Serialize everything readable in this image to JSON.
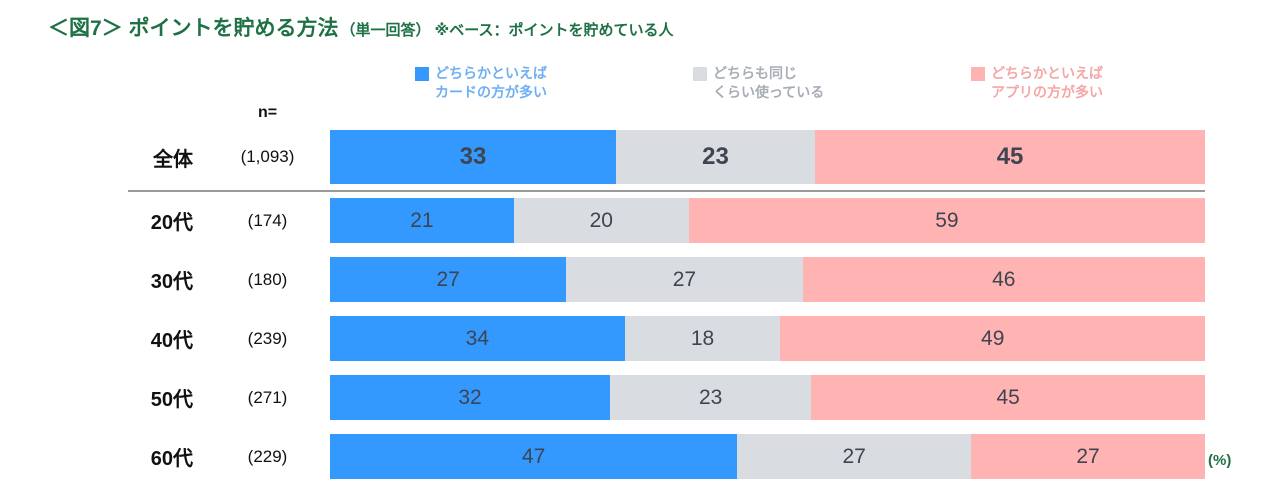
{
  "title": {
    "main": "＜図7＞ ポイントを貯める方法",
    "sub": "（単一回答） ※ベース：ポイントを貯めている人"
  },
  "n_label": "n=",
  "unit_label": "(%)",
  "colors": {
    "card_blue": "#3399FF",
    "same_gray": "#D9DCE1",
    "app_pink": "#FFB3B3",
    "title_green": "#1E7145",
    "bar_value_text": "#3F4450"
  },
  "legend": [
    {
      "key": "card",
      "line1": "どちらかといえば",
      "line2": "カードの方が多い",
      "color": "#3399FF",
      "text_color": "#6FAFF2"
    },
    {
      "key": "same",
      "line1": "どちらも同じ",
      "line2": "くらい使っている",
      "color": "#D9DCE1",
      "text_color": "#A8ADB6"
    },
    {
      "key": "app",
      "line1": "どちらかといえば",
      "line2": "アプリの方が多い",
      "color": "#FFB3B3",
      "text_color": "#F5A6A6"
    }
  ],
  "chart_data": {
    "type": "bar",
    "stacked": true,
    "orientation": "horizontal",
    "unit": "%",
    "title": "＜図7＞ ポイントを貯める方法（単一回答） ※ベース：ポイントを貯めている人",
    "categories": [
      "全体",
      "20代",
      "30代",
      "40代",
      "50代",
      "60代"
    ],
    "n_values": [
      "(1,093)",
      "(174)",
      "(180)",
      "(239)",
      "(271)",
      "(229)"
    ],
    "series": [
      {
        "key": "card",
        "name": "どちらかといえばカードの方が多い",
        "color": "#3399FF",
        "values": [
          33,
          21,
          27,
          34,
          32,
          47
        ]
      },
      {
        "key": "same",
        "name": "どちらも同じくらい使っている",
        "color": "#D9DCE1",
        "values": [
          23,
          20,
          27,
          18,
          23,
          27
        ]
      },
      {
        "key": "app",
        "name": "どちらかといえばアプリの方が多い",
        "color": "#FFB3B3",
        "values": [
          45,
          59,
          46,
          49,
          45,
          27
        ]
      }
    ],
    "xlim": [
      0,
      100
    ],
    "legend_position": "top",
    "grid": false
  }
}
